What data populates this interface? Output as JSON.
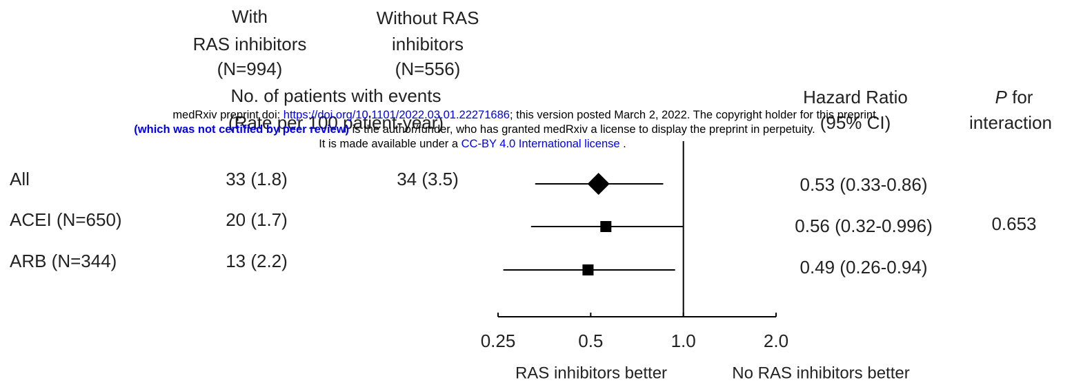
{
  "chart_data": {
    "type": "forest",
    "column_headers": {
      "with": [
        "With",
        "RAS inhibitors",
        "(N=994)"
      ],
      "without": [
        "Without RAS",
        "inhibitors",
        "(N=556)"
      ],
      "events": [
        "No. of patients with events",
        "(Rate per 100 patient-year)"
      ],
      "hr": [
        "Hazard Ratio",
        "(95% CI)"
      ],
      "p_italic": "P",
      "p_rest": "for",
      "p_second": "interaction"
    },
    "categories": [
      "All",
      "ACEI (N=650)",
      "ARB (N=344)"
    ],
    "with_events": [
      "33 (1.8)",
      "20 (1.7)",
      "13 (2.2)"
    ],
    "without_events": [
      "34 (3.5)",
      null,
      null
    ],
    "hr": [
      0.53,
      0.56,
      0.49
    ],
    "lower": [
      0.33,
      0.32,
      0.26
    ],
    "upper": [
      0.86,
      0.996,
      0.94
    ],
    "hr_labels": [
      "0.53 (0.33-0.86)",
      "0.56 (0.32-0.996)",
      "0.49 (0.26-0.94)"
    ],
    "markers": [
      "diamond",
      "square",
      "square"
    ],
    "p_interaction": 0.653,
    "xscale": "log",
    "xlim": [
      0.25,
      2.0
    ],
    "xticks": [
      0.25,
      0.5,
      {
        "value": 1.0,
        "label": "1.0"
      },
      {
        "value": 2.0,
        "label": "2.0"
      }
    ],
    "reference": 1.0,
    "x_labels": [
      "RAS inhibitors better",
      "No RAS inhibitors better"
    ],
    "color": "#000000"
  },
  "watermark": {
    "line1": [
      "medRxiv preprint doi: ",
      "https://doi.org/10.1101/2022.03.01.22271686",
      "; this version posted March 2, 2022. The copyright holder for this preprint"
    ],
    "line2": [
      "(which was not certified by peer review)",
      " is the author/funder, who has granted medRxiv a license to display the preprint in perpetuity."
    ],
    "line3": [
      "It is made available under a ",
      "CC-BY 4.0 International license",
      " ."
    ]
  }
}
